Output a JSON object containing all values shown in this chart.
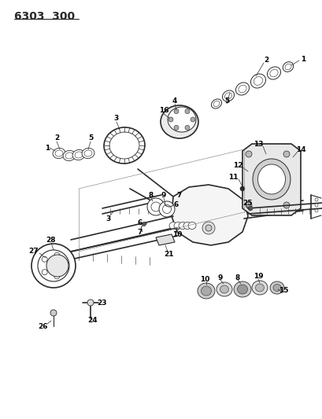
{
  "title": "6303  300",
  "bg_color": "#ffffff",
  "line_color": "#2a2a2a",
  "label_color": "#000000",
  "title_fontsize": 10,
  "label_fontsize": 6.5,
  "figsize": [
    4.1,
    5.33
  ],
  "dpi": 100
}
